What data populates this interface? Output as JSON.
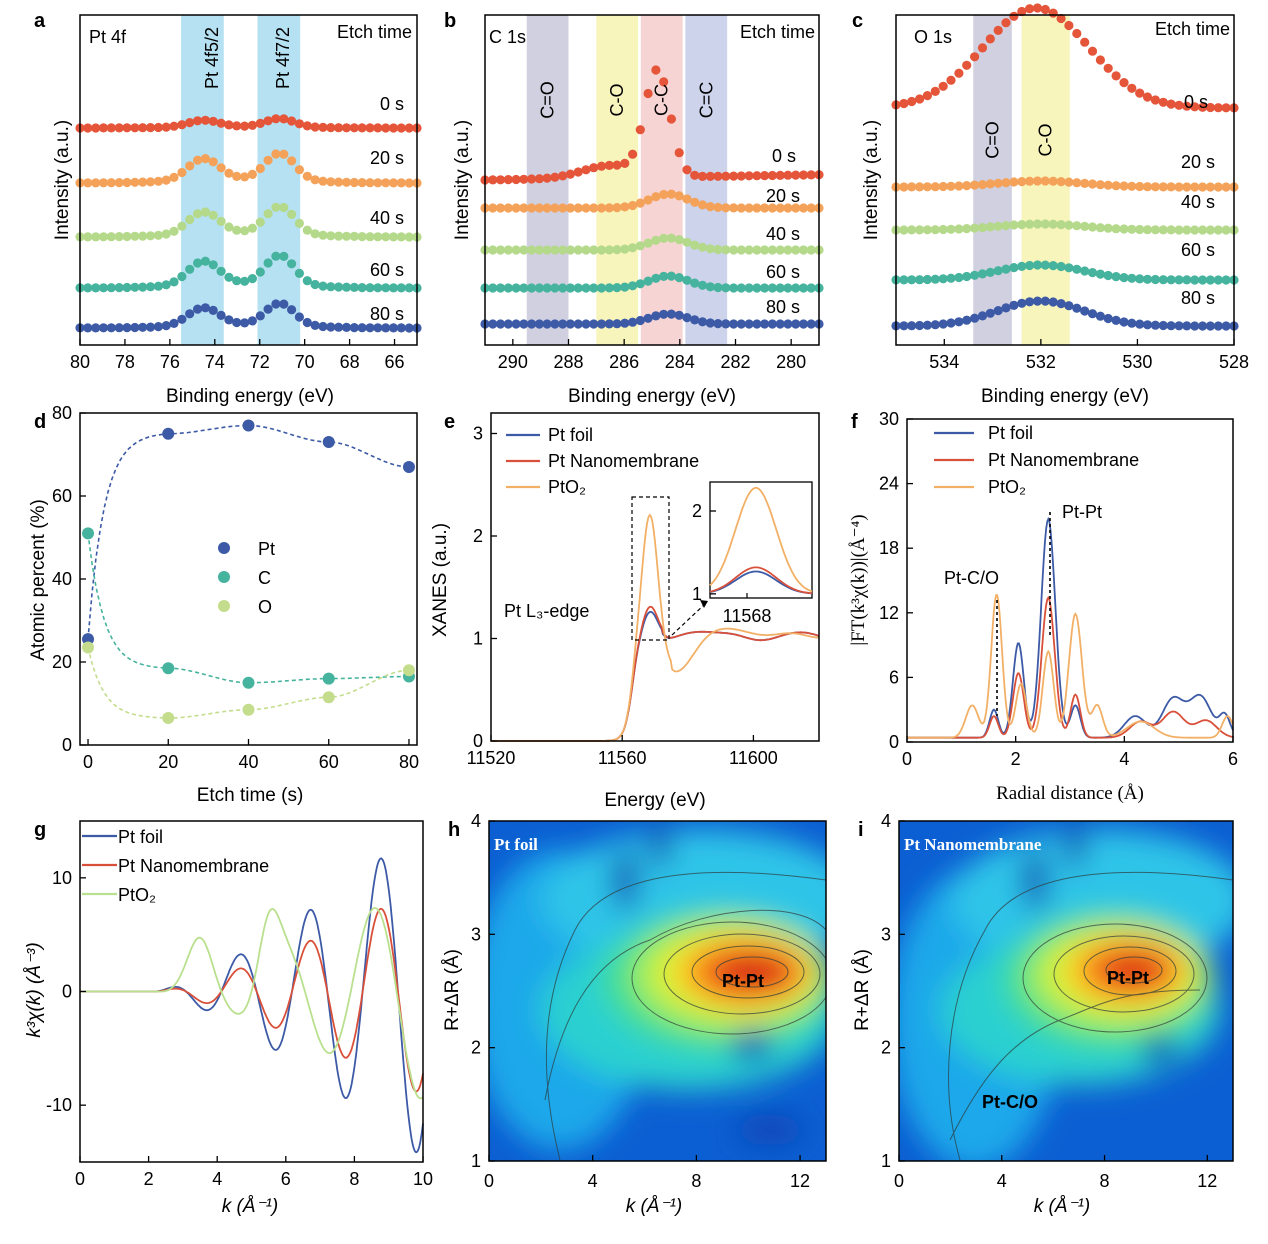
{
  "chart_data": [
    {
      "id": "a",
      "panel": "a",
      "type": "line",
      "xlabel": "Binding energy (eV)",
      "ylabel": "Intensity (a.u.)",
      "xlim": [
        80,
        65
      ],
      "xticks": [
        80,
        78,
        76,
        74,
        72,
        70,
        68,
        66
      ],
      "corner_left": "Pt 4f",
      "corner_right": "Etch time",
      "bands": [
        {
          "label": "Pt 4f5/2",
          "from": 75.5,
          "to": 73.6,
          "color": "#a8dcf0"
        },
        {
          "label": "Pt 4f7/2",
          "from": 72.1,
          "to": 70.2,
          "color": "#a8dcf0"
        }
      ],
      "peaks": [
        74.5,
        71.1
      ],
      "series": [
        {
          "name": "0 s",
          "color": "#e4553a",
          "peak": 1.3
        },
        {
          "name": "20 s",
          "color": "#f4a25a",
          "peak": 4.1
        },
        {
          "name": "40 s",
          "color": "#b5d98a",
          "peak": 4.2
        },
        {
          "name": "60 s",
          "color": "#45b39d",
          "peak": 4.5
        },
        {
          "name": "80 s",
          "color": "#3c5aa6",
          "peak": 3.4
        }
      ]
    },
    {
      "id": "b",
      "panel": "b",
      "type": "line",
      "xlabel": "Binding energy (eV)",
      "ylabel": "Intensity (a.u.)",
      "xlim": [
        291,
        279
      ],
      "xticks": [
        290,
        288,
        286,
        284,
        282,
        280
      ],
      "corner_left": "C 1s",
      "corner_right": "Etch time",
      "bands": [
        {
          "label": "C=O",
          "from": 289.5,
          "to": 288.0,
          "color": "#c9c8da"
        },
        {
          "label": "C-O",
          "from": 287.0,
          "to": 285.5,
          "color": "#f7f3b0"
        },
        {
          "label": "C-C",
          "from": 285.4,
          "to": 283.9,
          "color": "#f6cdcd"
        },
        {
          "label": "C=C",
          "from": 283.8,
          "to": 282.3,
          "color": "#c3cbe6"
        }
      ],
      "series": [
        {
          "name": "0 s",
          "color": "#e4553a",
          "peak": 10.5
        },
        {
          "name": "20 s",
          "color": "#f4a25a",
          "peak": 1.4
        },
        {
          "name": "40 s",
          "color": "#b5d98a",
          "peak": 1.2
        },
        {
          "name": "60 s",
          "color": "#45b39d",
          "peak": 1.2
        },
        {
          "name": "80 s",
          "color": "#3c5aa6",
          "peak": 1.0
        }
      ]
    },
    {
      "id": "c",
      "panel": "c",
      "type": "line",
      "xlabel": "Binding energy (eV)",
      "ylabel": "Intensity (a.u.)",
      "xlim": [
        535,
        528
      ],
      "xticks": [
        534,
        532,
        530,
        528
      ],
      "corner_left": "O 1s",
      "corner_right": "Etch time",
      "bands": [
        {
          "label": "C=O",
          "from": 533.4,
          "to": 532.6,
          "color": "#c9c8da"
        },
        {
          "label": "C-O",
          "from": 532.4,
          "to": 531.4,
          "color": "#f7f3b0"
        }
      ],
      "series": [
        {
          "name": "0 s",
          "color": "#e4553a",
          "peak": 10.0
        },
        {
          "name": "20 s",
          "color": "#f4a25a",
          "peak": 0.6
        },
        {
          "name": "40 s",
          "color": "#b5d98a",
          "peak": 0.6
        },
        {
          "name": "60 s",
          "color": "#45b39d",
          "peak": 1.5
        },
        {
          "name": "80 s",
          "color": "#3c5aa6",
          "peak": 2.5
        }
      ]
    },
    {
      "id": "d",
      "panel": "d",
      "type": "scatter",
      "xlabel": "Etch time (s)",
      "ylabel": "Atomic percent (%)",
      "xlim": [
        -2,
        82
      ],
      "ylim": [
        0,
        80
      ],
      "xticks": [
        0,
        20,
        40,
        60,
        80
      ],
      "yticks": [
        0,
        20,
        40,
        60,
        80
      ],
      "x": [
        0,
        20,
        40,
        60,
        80
      ],
      "series": [
        {
          "name": "Pt",
          "color": "#3c5aa6",
          "values": [
            25.5,
            75,
            77,
            73,
            67
          ]
        },
        {
          "name": "C",
          "color": "#45b39d",
          "values": [
            51,
            18.5,
            15,
            16,
            16.5
          ]
        },
        {
          "name": "O",
          "color": "#c3dd8c",
          "values": [
            23.5,
            6.5,
            8.5,
            11.5,
            18
          ]
        }
      ]
    },
    {
      "id": "e",
      "panel": "e",
      "type": "line",
      "xlabel": "Energy (eV)",
      "ylabel": "XANES (a.u.)",
      "xlim": [
        11520,
        11620
      ],
      "ylim": [
        0,
        3.2
      ],
      "xticks": [
        11520,
        11560,
        11600
      ],
      "yticks": [
        0,
        1,
        2,
        3
      ],
      "edge_label": "Pt L₃-edge",
      "inset": {
        "ylim": [
          0.95,
          2.35
        ],
        "yticks": [
          1,
          2
        ],
        "xtick": "11568"
      },
      "series": [
        {
          "name": "Pt foil",
          "color": "#3c5aa6",
          "peak": 1.27
        },
        {
          "name": "Pt Nanomembrane",
          "color": "#d9503a",
          "peak": 1.32
        },
        {
          "name": "PtO₂",
          "color": "#f2b066",
          "peak": 2.28
        }
      ]
    },
    {
      "id": "f",
      "panel": "f",
      "type": "line",
      "xlabel": "Radial distance (Å)",
      "ylabel": "|FT(k³χ(k))|(Å⁻⁴)",
      "xlim": [
        0,
        6
      ],
      "ylim": [
        0,
        30
      ],
      "xticks": [
        0,
        2,
        4,
        6
      ],
      "yticks": [
        0,
        6,
        12,
        18,
        24,
        30
      ],
      "annotations": [
        {
          "label": "Pt-Pt",
          "x": 2.6
        },
        {
          "label": "Pt-C/O",
          "x": 1.65
        }
      ],
      "series": [
        {
          "name": "Pt foil",
          "color": "#3c5aa6",
          "peak": 20.3
        },
        {
          "name": "Pt Nanomembrane",
          "color": "#d9503a",
          "peak": 13.0
        },
        {
          "name": "PtO₂",
          "color": "#f2b066",
          "peak": 13.3
        }
      ]
    },
    {
      "id": "g",
      "panel": "g",
      "type": "line",
      "xlabel": "k (Å⁻¹)",
      "ylabel": "k³χ(k) (Å⁻³)",
      "xlim": [
        0,
        10
      ],
      "ylim": [
        -15,
        15
      ],
      "xticks": [
        0,
        2,
        4,
        6,
        8,
        10
      ],
      "yticks": [
        10,
        0,
        -10
      ],
      "series": [
        {
          "name": "Pt foil",
          "color": "#3c5aa6",
          "amp": 13.2
        },
        {
          "name": "Pt Nanomembrane",
          "color": "#d9503a",
          "amp": 8.2
        },
        {
          "name": "PtO₂",
          "color": "#b9e08e",
          "amp": 8.6
        }
      ]
    },
    {
      "id": "h",
      "panel": "h",
      "type": "heatmap",
      "title": "Pt foil",
      "xlabel": "k (Å⁻¹)",
      "ylabel": "R+ΔR (Å)",
      "xlim": [
        0,
        13
      ],
      "ylim": [
        1,
        4
      ],
      "xticks": [
        0,
        4,
        8,
        12
      ],
      "yticks": [
        1,
        2,
        3,
        4
      ],
      "maxima": [
        {
          "label": "Pt-Pt",
          "x": 10,
          "y": 2.65
        }
      ]
    },
    {
      "id": "i",
      "panel": "i",
      "type": "heatmap",
      "title": "Pt Nanomembrane",
      "xlabel": "k (Å⁻¹)",
      "ylabel": "R+ΔR (Å)",
      "xlim": [
        0,
        13
      ],
      "ylim": [
        1,
        4
      ],
      "xticks": [
        0,
        4,
        8,
        12
      ],
      "yticks": [
        1,
        2,
        3,
        4
      ],
      "maxima": [
        {
          "label": "Pt-Pt",
          "x": 8.5,
          "y": 2.65
        },
        {
          "label": "Pt-C/O",
          "x": 3.5,
          "y": 1.5
        }
      ]
    }
  ]
}
